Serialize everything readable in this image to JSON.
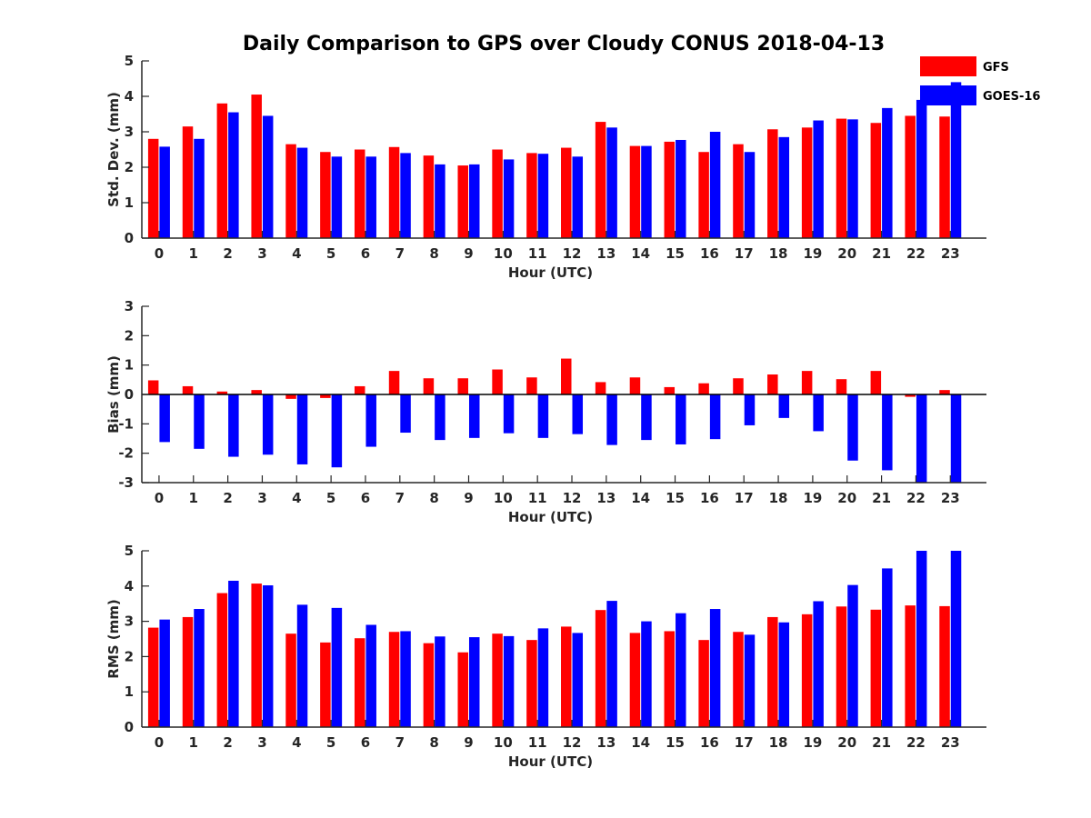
{
  "title": "Daily Comparison to GPS over Cloudy CONUS 2018-04-13",
  "colors": {
    "GFS": "#ff0000",
    "GOES-16": "#0000ff",
    "axis": "#262626"
  },
  "legend": {
    "placement": "top-right",
    "entries": [
      "GFS",
      "GOES-16"
    ]
  },
  "chart_data": [
    {
      "type": "bar",
      "xlabel": "Hour (UTC)",
      "ylabel": "Std. Dev. (mm)",
      "ylim": [
        0,
        5
      ],
      "yticks": [
        0,
        1,
        2,
        3,
        4,
        5
      ],
      "grid": false,
      "categories": [
        "0",
        "1",
        "2",
        "3",
        "4",
        "5",
        "6",
        "7",
        "8",
        "9",
        "10",
        "11",
        "12",
        "13",
        "14",
        "15",
        "16",
        "17",
        "18",
        "19",
        "20",
        "21",
        "22",
        "23"
      ],
      "series": [
        {
          "name": "GFS",
          "values": [
            2.8,
            3.15,
            3.8,
            4.05,
            2.65,
            2.43,
            2.5,
            2.57,
            2.33,
            2.05,
            2.5,
            2.4,
            2.55,
            3.28,
            2.6,
            2.72,
            2.43,
            2.65,
            3.07,
            3.12,
            3.37,
            3.25,
            3.45,
            3.43
          ]
        },
        {
          "name": "GOES-16",
          "values": [
            2.58,
            2.8,
            3.55,
            3.45,
            2.55,
            2.3,
            2.3,
            2.4,
            2.08,
            2.08,
            2.22,
            2.38,
            2.3,
            3.12,
            2.6,
            2.77,
            3.0,
            2.43,
            2.85,
            3.32,
            3.35,
            3.67,
            3.9,
            4.4
          ]
        }
      ]
    },
    {
      "type": "bar",
      "xlabel": "Hour (UTC)",
      "ylabel": "Bias (mm)",
      "ylim": [
        -3,
        3
      ],
      "yticks": [
        -3,
        -2,
        -1,
        0,
        1,
        2,
        3
      ],
      "grid": false,
      "categories": [
        "0",
        "1",
        "2",
        "3",
        "4",
        "5",
        "6",
        "7",
        "8",
        "9",
        "10",
        "11",
        "12",
        "13",
        "14",
        "15",
        "16",
        "17",
        "18",
        "19",
        "20",
        "21",
        "22",
        "23"
      ],
      "series": [
        {
          "name": "GFS",
          "values": [
            0.48,
            0.28,
            0.1,
            0.15,
            -0.15,
            -0.12,
            0.28,
            0.8,
            0.55,
            0.55,
            0.85,
            0.58,
            1.22,
            0.42,
            0.58,
            0.25,
            0.38,
            0.55,
            0.68,
            0.8,
            0.52,
            0.8,
            -0.08,
            0.15
          ]
        },
        {
          "name": "GOES-16",
          "values": [
            -1.62,
            -1.85,
            -2.12,
            -2.05,
            -2.38,
            -2.48,
            -1.78,
            -1.3,
            -1.55,
            -1.48,
            -1.32,
            -1.48,
            -1.35,
            -1.72,
            -1.55,
            -1.7,
            -1.52,
            -1.05,
            -0.8,
            -1.25,
            -2.25,
            -2.58,
            -3.0,
            -3.0
          ]
        }
      ]
    },
    {
      "type": "bar",
      "xlabel": "Hour (UTC)",
      "ylabel": "RMS (mm)",
      "ylim": [
        0,
        5
      ],
      "yticks": [
        0,
        1,
        2,
        3,
        4,
        5
      ],
      "grid": false,
      "categories": [
        "0",
        "1",
        "2",
        "3",
        "4",
        "5",
        "6",
        "7",
        "8",
        "9",
        "10",
        "11",
        "12",
        "13",
        "14",
        "15",
        "16",
        "17",
        "18",
        "19",
        "20",
        "21",
        "22",
        "23"
      ],
      "series": [
        {
          "name": "GFS",
          "values": [
            2.82,
            3.12,
            3.8,
            4.07,
            2.65,
            2.4,
            2.52,
            2.7,
            2.38,
            2.12,
            2.65,
            2.47,
            2.85,
            3.32,
            2.67,
            2.72,
            2.47,
            2.7,
            3.12,
            3.2,
            3.42,
            3.33,
            3.45,
            3.43
          ]
        },
        {
          "name": "GOES-16",
          "values": [
            3.05,
            3.35,
            4.15,
            4.02,
            3.47,
            3.38,
            2.9,
            2.72,
            2.57,
            2.55,
            2.58,
            2.8,
            2.67,
            3.58,
            3.0,
            3.23,
            3.35,
            2.62,
            2.97,
            3.57,
            4.03,
            4.5,
            5.0,
            5.0
          ]
        }
      ]
    }
  ]
}
